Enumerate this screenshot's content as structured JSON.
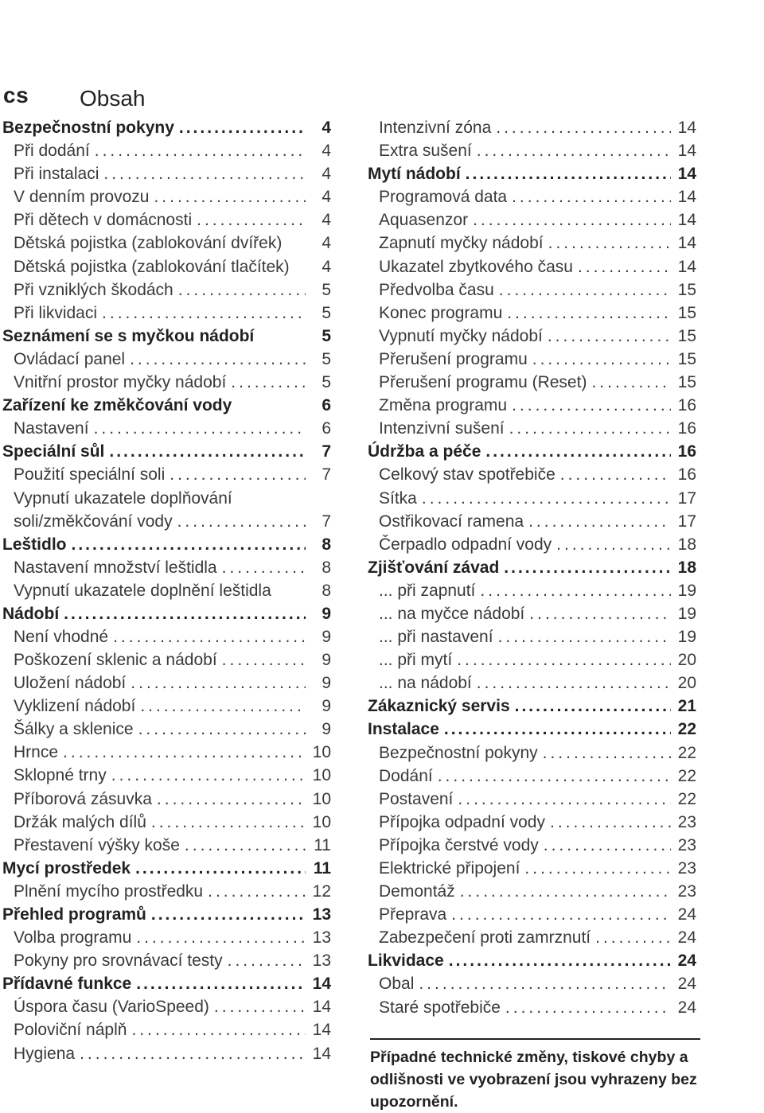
{
  "header": {
    "lang": "cs",
    "title": "Obsah"
  },
  "left": [
    {
      "t": "Bezpečnostní pokyny",
      "p": "4",
      "h": true
    },
    {
      "t": "Při dodání",
      "p": "4"
    },
    {
      "t": "Při instalaci",
      "p": "4"
    },
    {
      "t": "V denním provozu",
      "p": "4"
    },
    {
      "t": "Při dětech v domácnosti",
      "p": "4"
    },
    {
      "t": "Dětská pojistka (zablokování dvířek)",
      "p": "4",
      "nodots": true
    },
    {
      "t": "Dětská pojistka (zablokování tlačítek)",
      "p": "4",
      "nodots": true
    },
    {
      "t": "Při vzniklých škodách",
      "p": "5"
    },
    {
      "t": "Při likvidaci",
      "p": "5"
    },
    {
      "t": "Seznámení se s myčkou nádobí",
      "p": "5",
      "h": true,
      "nodots": true
    },
    {
      "t": "Ovládací panel",
      "p": "5"
    },
    {
      "t": "Vnitřní prostor myčky nádobí",
      "p": "5"
    },
    {
      "t": "Zařízení ke změkčování vody",
      "p": "6",
      "h": true,
      "nodots": true
    },
    {
      "t": "Nastavení",
      "p": "6"
    },
    {
      "t": "Speciální sůl",
      "p": "7",
      "h": true
    },
    {
      "t": "Použití speciální soli",
      "p": "7"
    },
    {
      "t": "Vypnutí ukazatele doplňování",
      "t2": "soli/změkčování vody",
      "p": "7",
      "two": true
    },
    {
      "t": "Leštidlo",
      "p": "8",
      "h": true
    },
    {
      "t": "Nastavení množství leštidla",
      "p": "8"
    },
    {
      "t": "Vypnutí ukazatele doplnění leštidla",
      "p": "8",
      "nodots": true
    },
    {
      "t": "Nádobí",
      "p": "9",
      "h": true
    },
    {
      "t": "Není vhodné",
      "p": "9"
    },
    {
      "t": "Poškození sklenic a nádobí",
      "p": "9"
    },
    {
      "t": "Uložení nádobí",
      "p": "9"
    },
    {
      "t": "Vyklizení nádobí",
      "p": "9"
    },
    {
      "t": "Šálky a sklenice",
      "p": "9"
    },
    {
      "t": "Hrnce",
      "p": "10"
    },
    {
      "t": "Sklopné trny",
      "p": "10"
    },
    {
      "t": "Příborová zásuvka",
      "p": "10"
    },
    {
      "t": "Držák malých dílů",
      "p": "10"
    },
    {
      "t": "Přestavení výšky koše",
      "p": "11"
    },
    {
      "t": "Mycí prostředek",
      "p": "11",
      "h": true
    },
    {
      "t": "Plnění mycího prostředku",
      "p": "12"
    },
    {
      "t": "Přehled programů",
      "p": "13",
      "h": true
    },
    {
      "t": "Volba programu",
      "p": "13"
    },
    {
      "t": "Pokyny pro srovnávací testy",
      "p": "13"
    },
    {
      "t": "Přídavné funkce",
      "p": "14",
      "h": true
    },
    {
      "t": "Úspora času (VarioSpeed)",
      "p": "14"
    },
    {
      "t": "Poloviční náplň",
      "p": "14"
    },
    {
      "t": "Hygiena",
      "p": "14"
    }
  ],
  "right": [
    {
      "t": "Intenzivní zóna",
      "p": "14"
    },
    {
      "t": "Extra sušení",
      "p": "14"
    },
    {
      "t": "Mytí nádobí",
      "p": "14",
      "h": true
    },
    {
      "t": "Programová data",
      "p": "14"
    },
    {
      "t": "Aquasenzor",
      "p": "14"
    },
    {
      "t": "Zapnutí myčky nádobí",
      "p": "14"
    },
    {
      "t": "Ukazatel zbytkového času",
      "p": "14"
    },
    {
      "t": "Předvolba času",
      "p": "15"
    },
    {
      "t": "Konec programu",
      "p": "15"
    },
    {
      "t": "Vypnutí myčky nádobí",
      "p": "15"
    },
    {
      "t": "Přerušení programu",
      "p": "15"
    },
    {
      "t": "Přerušení programu (Reset)",
      "p": "15"
    },
    {
      "t": "Změna programu",
      "p": "16"
    },
    {
      "t": "Intenzivní sušení",
      "p": "16"
    },
    {
      "t": "Údržba a péče",
      "p": "16",
      "h": true
    },
    {
      "t": "Celkový stav spotřebiče",
      "p": "16"
    },
    {
      "t": "Sítka",
      "p": "17"
    },
    {
      "t": "Ostřikovací ramena",
      "p": "17"
    },
    {
      "t": "Čerpadlo odpadní vody",
      "p": "18"
    },
    {
      "t": "Zjišťování závad",
      "p": "18",
      "h": true
    },
    {
      "t": "... při zapnutí",
      "p": "19"
    },
    {
      "t": "... na myčce nádobí",
      "p": "19"
    },
    {
      "t": "... při nastavení",
      "p": "19"
    },
    {
      "t": "... při mytí",
      "p": "20"
    },
    {
      "t": "... na nádobí",
      "p": "20"
    },
    {
      "t": "Zákaznický servis",
      "p": "21",
      "h": true
    },
    {
      "t": "Instalace",
      "p": "22",
      "h": true
    },
    {
      "t": "Bezpečnostní pokyny",
      "p": "22"
    },
    {
      "t": "Dodání",
      "p": "22"
    },
    {
      "t": "Postavení",
      "p": "22"
    },
    {
      "t": "Přípojka odpadní vody",
      "p": "23"
    },
    {
      "t": "Přípojka čerstvé vody",
      "p": "23"
    },
    {
      "t": "Elektrické připojení",
      "p": "23"
    },
    {
      "t": "Demontáž",
      "p": "23"
    },
    {
      "t": "Přeprava",
      "p": "24"
    },
    {
      "t": "Zabezpečení proti zamrznutí",
      "p": "24"
    },
    {
      "t": "Likvidace",
      "p": "24",
      "h": true
    },
    {
      "t": "Obal",
      "p": "24"
    },
    {
      "t": "Staré spotřebiče",
      "p": "24"
    }
  ],
  "notice": "Případné technické změny, tiskové chyby a odlišnosti ve vyobrazení jsou vyhrazeny bez upozornění."
}
